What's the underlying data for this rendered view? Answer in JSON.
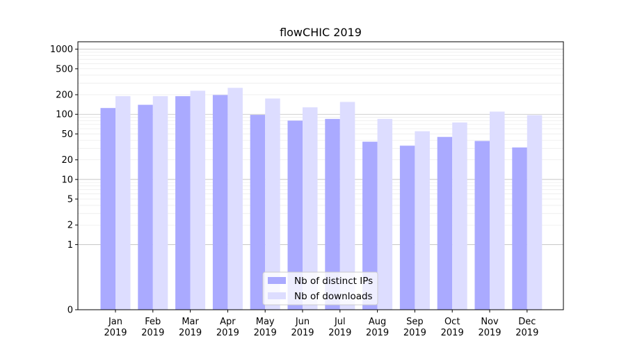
{
  "chart_data": {
    "type": "bar",
    "title": "flowCHIC 2019",
    "xlabel": "",
    "ylabel": "",
    "yscale": "symlog",
    "ylim": [
      0,
      1300
    ],
    "y_ticks": [
      0,
      1,
      2,
      5,
      10,
      20,
      50,
      100,
      200,
      500,
      1000
    ],
    "y_tick_labels": [
      "0",
      "1",
      "2",
      "5",
      "10",
      "20",
      "50",
      "100",
      "200",
      "500",
      "1000"
    ],
    "grid": true,
    "legend_position": "bottom-center",
    "categories": [
      [
        "Jan",
        "2019"
      ],
      [
        "Feb",
        "2019"
      ],
      [
        "Mar",
        "2019"
      ],
      [
        "Apr",
        "2019"
      ],
      [
        "May",
        "2019"
      ],
      [
        "Jun",
        "2019"
      ],
      [
        "Jul",
        "2019"
      ],
      [
        "Aug",
        "2019"
      ],
      [
        "Sep",
        "2019"
      ],
      [
        "Oct",
        "2019"
      ],
      [
        "Nov",
        "2019"
      ],
      [
        "Dec",
        "2019"
      ]
    ],
    "series": [
      {
        "name": "Nb of distinct IPs",
        "color": "#aaaaff",
        "values": [
          125,
          140,
          190,
          198,
          98,
          80,
          85,
          38,
          33,
          45,
          39,
          31
        ]
      },
      {
        "name": "Nb of downloads",
        "color": "#ddddff",
        "values": [
          190,
          190,
          230,
          255,
          175,
          128,
          155,
          85,
          55,
          75,
          110,
          97
        ]
      }
    ]
  }
}
